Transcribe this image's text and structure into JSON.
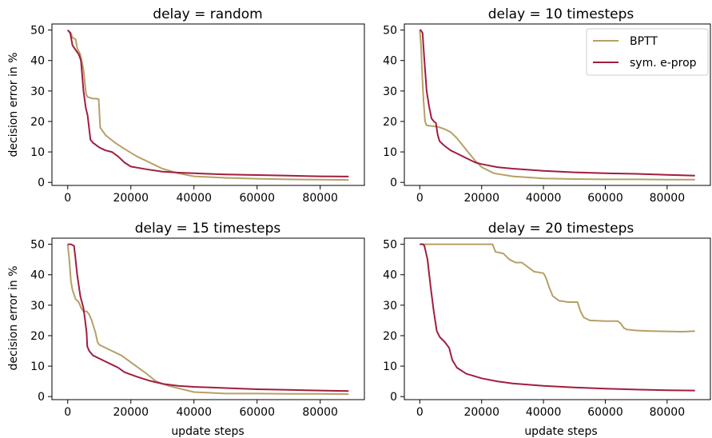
{
  "figure": {
    "ylabel_left": "decision error in %",
    "xlabel_bottom": "update steps"
  },
  "colors": {
    "bptt": "#b5a065",
    "eprop": "#a11d3f"
  },
  "legend": {
    "placement": "top-right",
    "entries": [
      "BPTT",
      "sym. e-prop"
    ]
  },
  "chart_data": [
    {
      "type": "line",
      "title": "delay = random",
      "xlabel": "",
      "ylabel": "decision error in %",
      "xlim": [
        -5000,
        94000
      ],
      "ylim": [
        -1,
        52
      ],
      "xticks": [
        0,
        20000,
        40000,
        60000,
        80000
      ],
      "xtick_labels": [
        "0",
        "20000",
        "40000",
        "60000",
        "80000"
      ],
      "yticks": [
        0,
        10,
        20,
        30,
        40,
        50
      ],
      "ytick_labels": [
        "0",
        "10",
        "20",
        "30",
        "40",
        "50"
      ],
      "series": [
        {
          "name": "BPTT",
          "color_key": "bptt",
          "x": [
            0,
            1000,
            1500,
            2500,
            3000,
            4000,
            5000,
            5800,
            6300,
            7000,
            8000,
            9000,
            9800,
            10300,
            12000,
            15000,
            18000,
            22000,
            26000,
            30000,
            35000,
            40000,
            50000,
            60000,
            70000,
            80000,
            89000
          ],
          "y": [
            50,
            49,
            47.5,
            47,
            44,
            42,
            37,
            29,
            28,
            27.8,
            27.5,
            27.5,
            27.3,
            18,
            15.5,
            13,
            11,
            8.5,
            6.5,
            4.5,
            3,
            2,
            1.5,
            1.2,
            1.0,
            0.9,
            0.8
          ]
        },
        {
          "name": "sym. e-prop",
          "color_key": "eprop",
          "x": [
            0,
            800,
            1500,
            2500,
            3500,
            4200,
            5000,
            5700,
            6300,
            7200,
            8000,
            10000,
            12000,
            14000,
            16000,
            18000,
            20000,
            25000,
            30000,
            35000,
            40000,
            50000,
            60000,
            70000,
            80000,
            89000
          ],
          "y": [
            50,
            49,
            45,
            43.5,
            42,
            40,
            30,
            24.5,
            22,
            14,
            13,
            11.5,
            10.5,
            10,
            8.5,
            6.5,
            5.2,
            4.3,
            3.5,
            3.2,
            3.0,
            2.6,
            2.4,
            2.2,
            2.0,
            1.9
          ]
        }
      ]
    },
    {
      "type": "line",
      "title": "delay = 10 timesteps",
      "xlabel": "",
      "ylabel": "",
      "xlim": [
        -5000,
        94000
      ],
      "ylim": [
        -1,
        52
      ],
      "xticks": [
        0,
        20000,
        40000,
        60000,
        80000
      ],
      "xtick_labels": [
        "0",
        "20000",
        "40000",
        "60000",
        "80000"
      ],
      "yticks": [
        0,
        10,
        20,
        30,
        40,
        50
      ],
      "ytick_labels": [
        "0",
        "10",
        "20",
        "30",
        "40",
        "50"
      ],
      "series": [
        {
          "name": "BPTT",
          "color_key": "bptt",
          "x": [
            0,
            400,
            800,
            1200,
            1700,
            2200,
            4000,
            6000,
            8000,
            10000,
            12000,
            14000,
            16000,
            18000,
            20000,
            24000,
            30000,
            40000,
            50000,
            60000,
            70000,
            80000,
            89000
          ],
          "y": [
            50,
            45,
            35,
            27,
            20,
            18.7,
            18.5,
            18.2,
            17.5,
            16.5,
            14.5,
            12,
            9.5,
            7,
            5,
            3,
            2,
            1.3,
            1.1,
            1.0,
            1.0,
            0.9,
            0.9
          ]
        },
        {
          "name": "sym. e-prop",
          "color_key": "eprop",
          "x": [
            0,
            300,
            900,
            1500,
            2200,
            3000,
            3800,
            4600,
            5200,
            5800,
            6400,
            8000,
            10000,
            12000,
            14000,
            16000,
            18000,
            20000,
            25000,
            30000,
            40000,
            50000,
            60000,
            70000,
            80000,
            89000
          ],
          "y": [
            50,
            50,
            49,
            40,
            30,
            25,
            21,
            20,
            19.5,
            15.5,
            13.5,
            12,
            10.5,
            9.5,
            8.5,
            7.5,
            6.5,
            6,
            5,
            4.5,
            3.8,
            3.3,
            3.0,
            2.8,
            2.5,
            2.2
          ]
        }
      ]
    },
    {
      "type": "line",
      "title": "delay = 15 timesteps",
      "xlabel": "update steps",
      "ylabel": "decision error in %",
      "xlim": [
        -5000,
        94000
      ],
      "ylim": [
        -1,
        52
      ],
      "xticks": [
        0,
        20000,
        40000,
        60000,
        80000
      ],
      "xtick_labels": [
        "0",
        "20000",
        "40000",
        "60000",
        "80000"
      ],
      "yticks": [
        0,
        10,
        20,
        30,
        40,
        50
      ],
      "ytick_labels": [
        "0",
        "10",
        "20",
        "30",
        "40",
        "50"
      ],
      "series": [
        {
          "name": "BPTT",
          "color_key": "bptt",
          "x": [
            0,
            500,
            1000,
            1500,
            2500,
            3500,
            4300,
            5000,
            6000,
            6800,
            7600,
            8200,
            8800,
            9400,
            10000,
            13000,
            17000,
            21000,
            25000,
            28000,
            32000,
            36000,
            40000,
            50000,
            60000,
            70000,
            80000,
            89000
          ],
          "y": [
            50,
            45,
            38,
            35,
            32,
            31,
            29,
            28,
            28,
            27,
            25,
            23,
            21,
            18,
            17,
            15.5,
            13.5,
            10.5,
            7.5,
            5,
            3.5,
            2.5,
            1.5,
            1.0,
            1.0,
            0.9,
            0.9,
            0.8
          ]
        },
        {
          "name": "sym. e-prop",
          "color_key": "eprop",
          "x": [
            0,
            1000,
            2000,
            2400,
            3000,
            4000,
            5000,
            5500,
            6000,
            6200,
            6800,
            8000,
            10000,
            12000,
            14000,
            16000,
            18000,
            22000,
            26000,
            30000,
            35000,
            40000,
            50000,
            60000,
            70000,
            80000,
            89000
          ],
          "y": [
            50,
            50,
            49.5,
            46,
            40,
            33,
            29,
            25,
            21,
            16.5,
            15,
            13.5,
            12.5,
            11.5,
            10.5,
            9.5,
            8,
            6.5,
            5.2,
            4.2,
            3.5,
            3.2,
            2.8,
            2.4,
            2.2,
            2.0,
            1.8
          ]
        }
      ]
    },
    {
      "type": "line",
      "title": "delay = 20 timesteps",
      "xlabel": "update steps",
      "ylabel": "",
      "xlim": [
        -5000,
        94000
      ],
      "ylim": [
        -1,
        52
      ],
      "xticks": [
        0,
        20000,
        40000,
        60000,
        80000
      ],
      "xtick_labels": [
        "0",
        "20000",
        "40000",
        "60000",
        "80000"
      ],
      "yticks": [
        0,
        10,
        20,
        30,
        40,
        50
      ],
      "ytick_labels": [
        "0",
        "10",
        "20",
        "30",
        "40",
        "50"
      ],
      "series": [
        {
          "name": "BPTT",
          "color_key": "bptt",
          "x": [
            0,
            5000,
            10000,
            15000,
            20000,
            23500,
            24500,
            27000,
            29000,
            31000,
            33000,
            37000,
            40000,
            40800,
            42000,
            43000,
            45000,
            48000,
            51000,
            52000,
            53000,
            55000,
            60000,
            64000,
            65000,
            66000,
            67000,
            70000,
            75000,
            80000,
            85000,
            89000
          ],
          "y": [
            50,
            50,
            50,
            50,
            50,
            50,
            47.5,
            47,
            45,
            44,
            44,
            41,
            40.5,
            39,
            35.5,
            33,
            31.5,
            31,
            31,
            28,
            26,
            25,
            24.8,
            24.8,
            24,
            22.5,
            22,
            21.7,
            21.5,
            21.4,
            21.3,
            21.5
          ]
        },
        {
          "name": "sym. e-prop",
          "color_key": "eprop",
          "x": [
            0,
            1000,
            1500,
            2500,
            3500,
            4500,
            5500,
            6500,
            8000,
            9500,
            10500,
            12000,
            15000,
            20000,
            25000,
            30000,
            40000,
            50000,
            60000,
            70000,
            80000,
            89000
          ],
          "y": [
            50,
            50,
            49.5,
            45,
            36,
            28,
            21.5,
            19.5,
            18,
            16,
            12,
            9.5,
            7.5,
            6,
            5,
            4.3,
            3.5,
            3.0,
            2.6,
            2.3,
            2.1,
            2.0
          ]
        }
      ]
    }
  ]
}
